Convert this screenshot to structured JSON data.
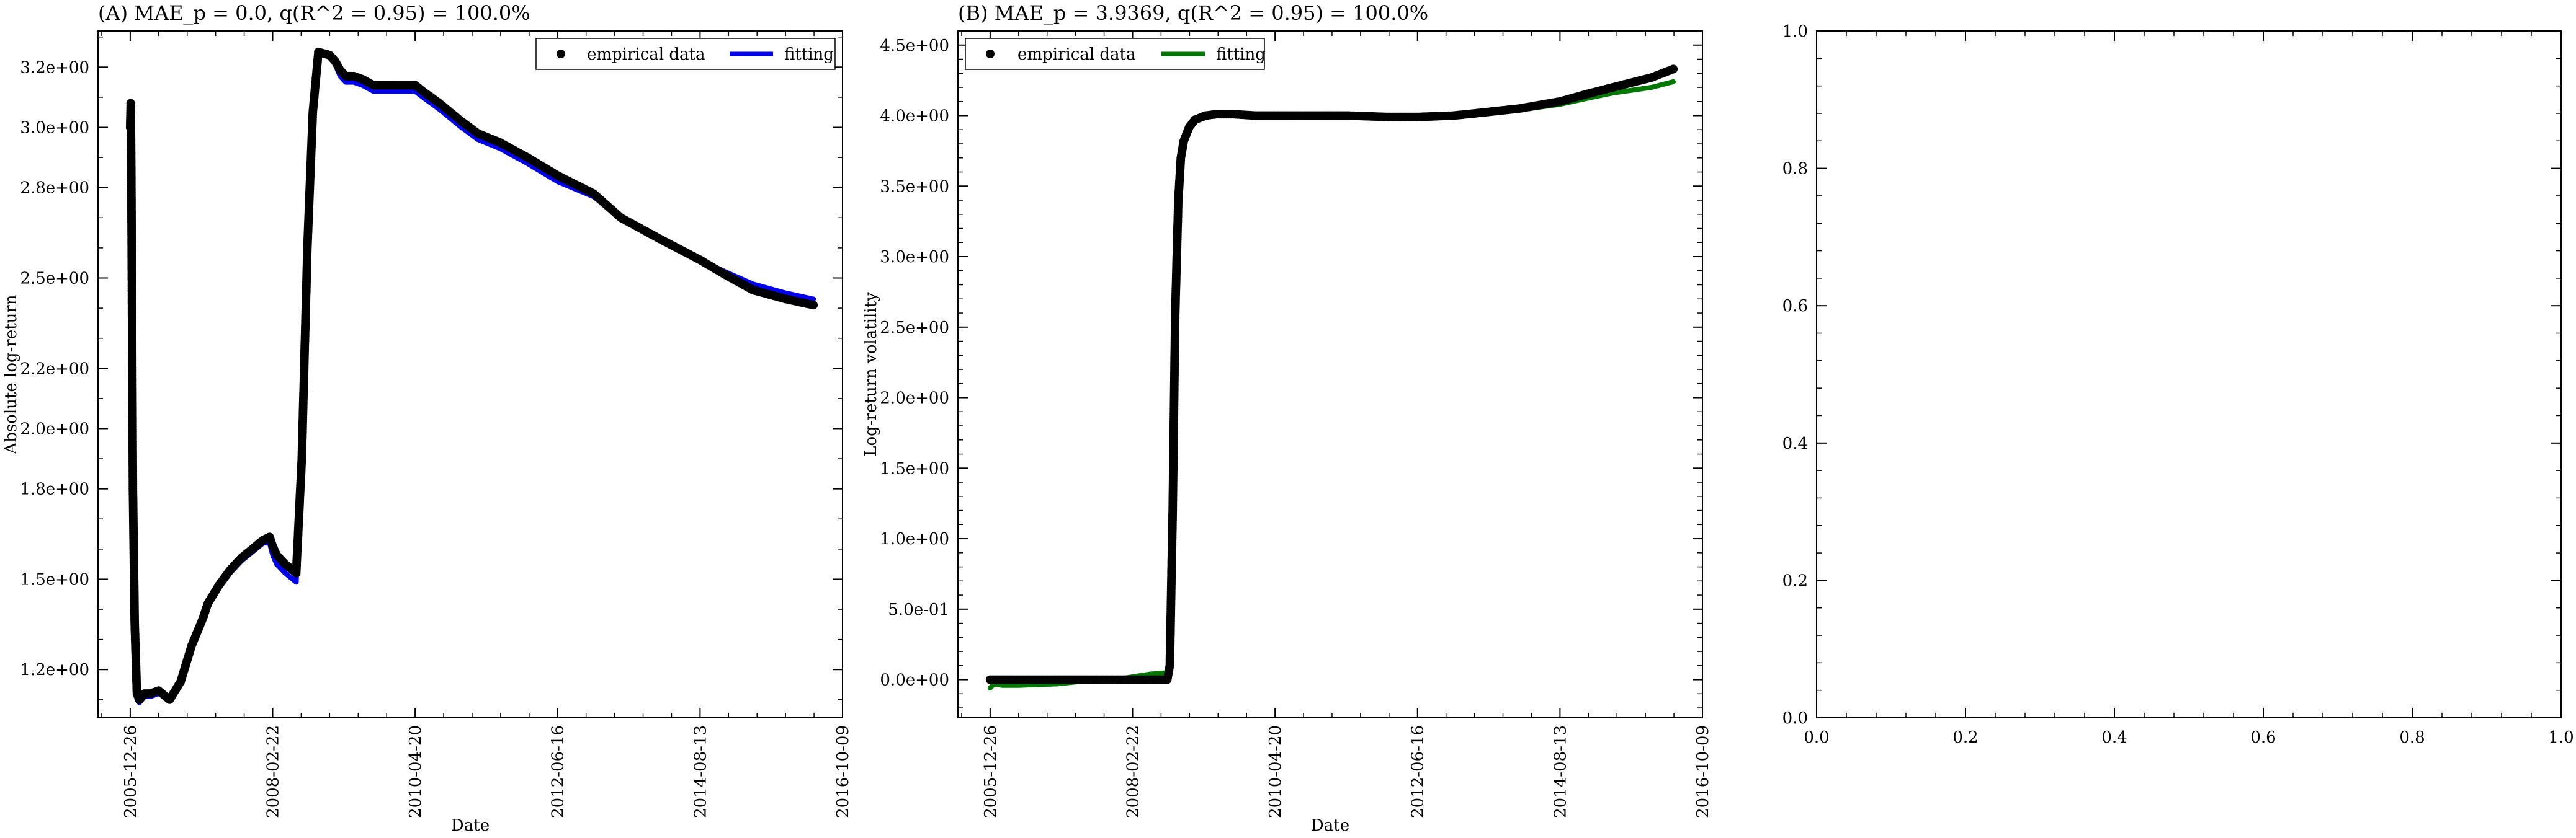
{
  "chart_data": [
    {
      "type": "line",
      "title": "(A) MAE_p = 0.0, q(R^2 = 0.95) = 100.0%",
      "xlabel": "Date",
      "ylabel": "Absolute log-return",
      "xlim": [
        "2005-07-01",
        "2016-10-09"
      ],
      "ylim": [
        1.04,
        3.32
      ],
      "x_ticks": [
        "2005-12-26",
        "2008-02-22",
        "2010-04-20",
        "2012-06-16",
        "2014-08-13",
        "2016-10-09"
      ],
      "y_ticks": [
        {
          "value": 1.2,
          "label": "1.2e+00"
        },
        {
          "value": 1.5,
          "label": "1.5e+00"
        },
        {
          "value": 1.8,
          "label": "1.8e+00"
        },
        {
          "value": 2.0,
          "label": "2.0e+00"
        },
        {
          "value": 2.2,
          "label": "2.2e+00"
        },
        {
          "value": 2.5,
          "label": "2.5e+00"
        },
        {
          "value": 2.8,
          "label": "2.8e+00"
        },
        {
          "value": 3.0,
          "label": "3.0e+00"
        },
        {
          "value": 3.2,
          "label": "3.2e+00"
        }
      ],
      "legend": {
        "position": "top-right",
        "entries": [
          "empirical data",
          "fitting"
        ]
      },
      "grid": false,
      "series": [
        {
          "name": "empirical data",
          "style": "points",
          "color": "#000000",
          "x": [
            "2005-12-26",
            "2005-12-29",
            "2006-01-01",
            "2006-01-05",
            "2006-01-10",
            "2006-01-20",
            "2006-02-01",
            "2006-02-15",
            "2006-03-15",
            "2006-04-15",
            "2006-06-01",
            "2006-08-01",
            "2006-10-01",
            "2006-12-01",
            "2007-02-01",
            "2007-03-01",
            "2007-05-01",
            "2007-07-01",
            "2007-09-01",
            "2007-11-01",
            "2008-01-01",
            "2008-02-05",
            "2008-02-22",
            "2008-03-15",
            "2008-05-01",
            "2008-07-01",
            "2008-08-01",
            "2008-09-01",
            "2008-10-01",
            "2008-11-01",
            "2009-01-01",
            "2009-02-01",
            "2009-03-01",
            "2009-04-01",
            "2009-05-15",
            "2009-07-01",
            "2009-09-01",
            "2009-11-01",
            "2010-01-01",
            "2010-04-20",
            "2010-06-01",
            "2010-09-01",
            "2011-01-01",
            "2011-04-01",
            "2011-08-01",
            "2012-01-01",
            "2012-06-16",
            "2013-01-01",
            "2013-06-01",
            "2014-01-01",
            "2014-08-13",
            "2015-01-01",
            "2015-06-01",
            "2015-12-01",
            "2016-05-01"
          ],
          "y": [
            3.0,
            3.08,
            2.85,
            2.4,
            1.8,
            1.35,
            1.12,
            1.1,
            1.12,
            1.12,
            1.13,
            1.1,
            1.16,
            1.28,
            1.37,
            1.42,
            1.48,
            1.53,
            1.57,
            1.6,
            1.63,
            1.64,
            1.61,
            1.58,
            1.55,
            1.52,
            1.9,
            2.6,
            3.05,
            3.25,
            3.24,
            3.22,
            3.19,
            3.17,
            3.17,
            3.16,
            3.14,
            3.14,
            3.14,
            3.14,
            3.12,
            3.08,
            3.02,
            2.98,
            2.95,
            2.9,
            2.84,
            2.78,
            2.7,
            2.63,
            2.56,
            2.51,
            2.46,
            2.43,
            2.41
          ]
        },
        {
          "name": "fitting",
          "style": "line",
          "color": "#0000ee",
          "x": [
            "2005-12-26",
            "2005-12-29",
            "2006-01-01",
            "2006-01-05",
            "2006-01-10",
            "2006-01-20",
            "2006-02-01",
            "2006-02-15",
            "2006-03-15",
            "2006-04-15",
            "2006-06-01",
            "2006-08-01",
            "2006-10-01",
            "2006-12-01",
            "2007-02-01",
            "2007-03-01",
            "2007-05-01",
            "2007-07-01",
            "2007-09-01",
            "2007-11-01",
            "2008-01-01",
            "2008-02-05",
            "2008-02-22",
            "2008-03-15",
            "2008-05-01",
            "2008-07-01",
            "2008-08-01",
            "2008-09-01",
            "2008-10-01",
            "2008-11-01",
            "2009-01-01",
            "2009-02-01",
            "2009-03-01",
            "2009-04-01",
            "2009-05-15",
            "2009-07-01",
            "2009-09-01",
            "2009-11-01",
            "2010-01-01",
            "2010-04-20",
            "2010-06-01",
            "2010-09-01",
            "2011-01-01",
            "2011-04-01",
            "2011-08-01",
            "2012-01-01",
            "2012-06-16",
            "2013-01-01",
            "2013-06-01",
            "2014-01-01",
            "2014-08-13",
            "2015-01-01",
            "2015-06-01",
            "2015-12-01",
            "2016-05-01"
          ],
          "y": [
            2.88,
            3.05,
            2.8,
            2.3,
            1.7,
            1.3,
            1.1,
            1.09,
            1.11,
            1.11,
            1.12,
            1.1,
            1.15,
            1.27,
            1.36,
            1.41,
            1.47,
            1.52,
            1.56,
            1.59,
            1.62,
            1.62,
            1.58,
            1.55,
            1.52,
            1.49,
            1.88,
            2.58,
            3.04,
            3.25,
            3.24,
            3.21,
            3.17,
            3.15,
            3.15,
            3.14,
            3.12,
            3.12,
            3.12,
            3.12,
            3.1,
            3.06,
            3.0,
            2.96,
            2.93,
            2.88,
            2.82,
            2.77,
            2.7,
            2.63,
            2.56,
            2.52,
            2.48,
            2.45,
            2.43
          ]
        }
      ]
    },
    {
      "type": "line",
      "title": "(B) MAE_p = 3.9369, q(R^2 = 0.95) = 100.0%",
      "xlabel": "Date",
      "ylabel": "Log-return volatility",
      "xlim": [
        "2005-07-01",
        "2016-10-09"
      ],
      "ylim": [
        -0.27,
        4.6
      ],
      "x_ticks": [
        "2005-12-26",
        "2008-02-22",
        "2010-04-20",
        "2012-06-16",
        "2014-08-13",
        "2016-10-09"
      ],
      "y_ticks": [
        {
          "value": 0.0,
          "label": "0.0e+00"
        },
        {
          "value": 0.5,
          "label": "5.0e-01"
        },
        {
          "value": 1.0,
          "label": "1.0e+00"
        },
        {
          "value": 1.5,
          "label": "1.5e+00"
        },
        {
          "value": 2.0,
          "label": "2.0e+00"
        },
        {
          "value": 2.5,
          "label": "2.5e+00"
        },
        {
          "value": 3.0,
          "label": "3.0e+00"
        },
        {
          "value": 3.5,
          "label": "3.5e+00"
        },
        {
          "value": 4.0,
          "label": "4.0e+00"
        },
        {
          "value": 4.5,
          "label": "4.5e+00"
        }
      ],
      "legend": {
        "position": "top-left",
        "entries": [
          "empirical data",
          "fitting"
        ]
      },
      "grid": false,
      "series": [
        {
          "name": "empirical data",
          "style": "points",
          "color": "#000000",
          "x": [
            "2005-12-26",
            "2006-06-01",
            "2007-01-01",
            "2007-06-01",
            "2008-01-01",
            "2008-06-01",
            "2008-09-01",
            "2008-09-15",
            "2008-10-01",
            "2008-10-15",
            "2008-11-01",
            "2008-11-15",
            "2008-12-01",
            "2009-01-01",
            "2009-02-01",
            "2009-04-01",
            "2009-06-01",
            "2009-09-01",
            "2010-01-01",
            "2010-06-01",
            "2011-01-01",
            "2011-06-01",
            "2012-01-01",
            "2012-06-16",
            "2013-01-01",
            "2013-06-01",
            "2014-01-01",
            "2014-08-13",
            "2015-01-01",
            "2015-06-01",
            "2016-01-01",
            "2016-05-01"
          ],
          "y": [
            0.0,
            0.0,
            0.0,
            0.0,
            0.0,
            0.0,
            0.0,
            0.1,
            1.2,
            2.6,
            3.4,
            3.7,
            3.82,
            3.92,
            3.97,
            4.0,
            4.01,
            4.01,
            4.0,
            4.0,
            4.0,
            4.0,
            3.99,
            3.99,
            4.0,
            4.02,
            4.05,
            4.1,
            4.15,
            4.2,
            4.27,
            4.33
          ]
        },
        {
          "name": "fitting",
          "style": "line",
          "color": "#007700",
          "x": [
            "2005-12-26",
            "2006-01-15",
            "2006-03-01",
            "2006-06-01",
            "2007-01-01",
            "2007-06-01",
            "2008-01-01",
            "2008-06-01",
            "2008-09-01",
            "2008-09-15",
            "2008-10-01",
            "2008-10-15",
            "2008-11-01",
            "2008-11-15",
            "2008-12-01",
            "2009-01-01",
            "2009-02-01",
            "2009-04-01",
            "2009-06-01",
            "2009-09-01",
            "2010-01-01",
            "2010-06-01",
            "2011-01-01",
            "2011-06-01",
            "2012-01-01",
            "2012-06-16",
            "2013-01-01",
            "2013-06-01",
            "2014-01-01",
            "2014-08-13",
            "2015-01-01",
            "2015-06-01",
            "2016-01-01",
            "2016-05-01"
          ],
          "y": [
            -0.06,
            -0.03,
            -0.04,
            -0.04,
            -0.03,
            -0.01,
            0.01,
            0.04,
            0.05,
            0.1,
            1.2,
            2.6,
            3.4,
            3.7,
            3.82,
            3.92,
            3.97,
            4.0,
            4.01,
            4.01,
            4.0,
            4.0,
            4.0,
            4.0,
            3.99,
            3.99,
            4.0,
            4.01,
            4.04,
            4.08,
            4.12,
            4.16,
            4.2,
            4.24
          ]
        }
      ]
    },
    {
      "type": "line",
      "title": "",
      "xlabel": "",
      "ylabel": "",
      "xlim": [
        0,
        1
      ],
      "ylim": [
        0,
        1
      ],
      "x_ticks": [
        {
          "value": 0.0,
          "label": "0.0"
        },
        {
          "value": 0.2,
          "label": "0.2"
        },
        {
          "value": 0.4,
          "label": "0.4"
        },
        {
          "value": 0.6,
          "label": "0.6"
        },
        {
          "value": 0.8,
          "label": "0.8"
        },
        {
          "value": 1.0,
          "label": "1.0"
        }
      ],
      "y_ticks": [
        {
          "value": 0.0,
          "label": "0.0"
        },
        {
          "value": 0.2,
          "label": "0.2"
        },
        {
          "value": 0.4,
          "label": "0.4"
        },
        {
          "value": 0.6,
          "label": "0.6"
        },
        {
          "value": 0.8,
          "label": "0.8"
        },
        {
          "value": 1.0,
          "label": "1.0"
        }
      ],
      "grid": false,
      "series": []
    }
  ]
}
